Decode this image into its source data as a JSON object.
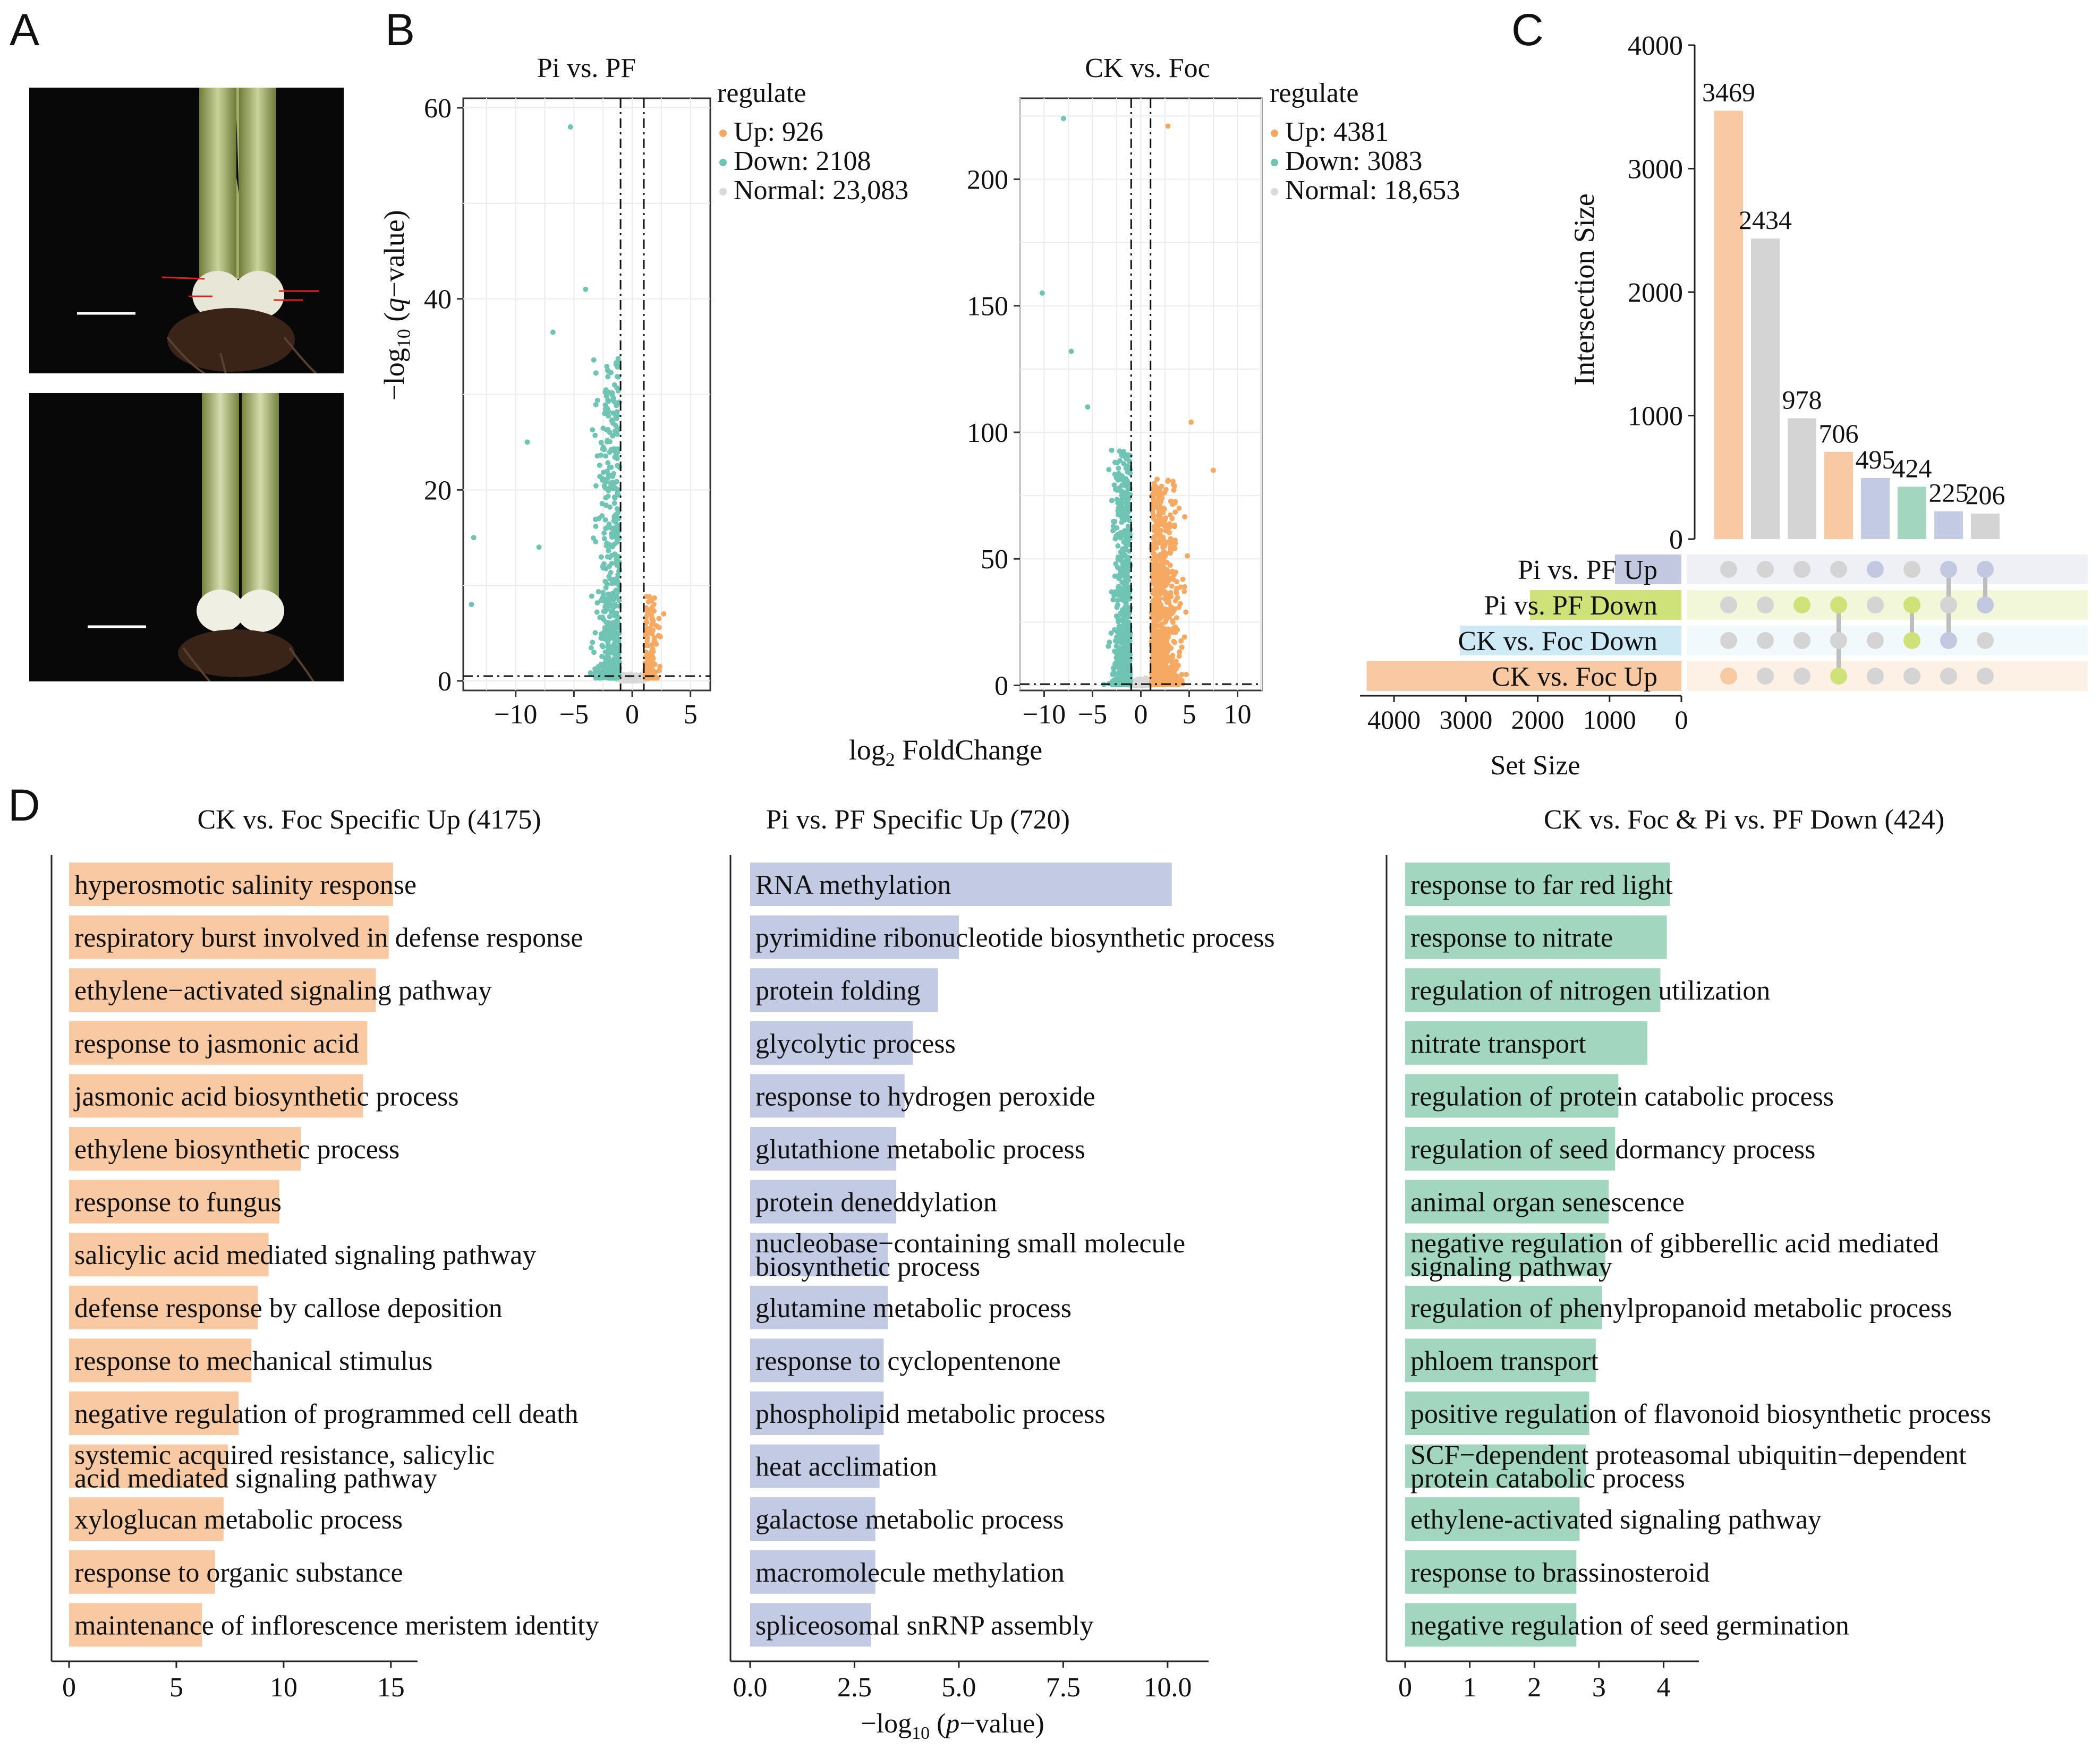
{
  "panels": {
    "A": "A",
    "B": "B",
    "C": "C",
    "D": "D"
  },
  "colors": {
    "up": "#f5a962",
    "down": "#6fc4b3",
    "normal": "#d9d9d9",
    "bar_orange": "#f8c9a3",
    "bar_blue": "#c3cae3",
    "bar_green": "#a3d6be",
    "red_text": "#e3342b",
    "upset_gray": "#d4d4d4",
    "upset_blue": "#c1c8e0",
    "upset_lime": "#cfe27a",
    "upset_sky": "#cfe9f5",
    "upset_green": "#a3d6be",
    "upset_peach": "#f8c9a3"
  },
  "photos": {
    "top_icon": "plant-stem-photo-inoculated",
    "bottom_icon": "plant-stem-photo-control"
  },
  "chart_data": [
    {
      "type": "scatter",
      "title": "Pi vs. PF",
      "xlabel": "log2 FoldChange",
      "ylabel": "−log10 (q−value)",
      "xlim": [
        -14.5,
        6.7
      ],
      "ylim": [
        -1,
        61
      ],
      "xticks": [
        -10,
        -5,
        0,
        5
      ],
      "yticks": [
        0,
        20,
        40,
        60
      ],
      "vlines": [
        -1,
        1
      ],
      "hline": 0.5,
      "legend_title": "regulate",
      "legend": [
        "Up: 926",
        "Down: 2108",
        "Normal: 23,083"
      ],
      "counts": {
        "up": 926,
        "down": 2108,
        "normal": 23083
      }
    },
    {
      "type": "scatter",
      "title": "CK vs. Foc",
      "xlim": [
        -12.5,
        12.5
      ],
      "ylim": [
        -2,
        232
      ],
      "xticks": [
        -10,
        -5,
        0,
        5,
        10
      ],
      "yticks": [
        0,
        50,
        100,
        150,
        200
      ],
      "vlines": [
        -1,
        1
      ],
      "hline": 0.5,
      "legend_title": "regulate",
      "legend": [
        "Up: 4381",
        "Down: 3083",
        "Normal: 18,653"
      ],
      "counts": {
        "up": 4381,
        "down": 3083,
        "normal": 18653
      }
    },
    {
      "type": "bar",
      "title": "UpSet",
      "ylabel": "Intersection Size",
      "ylim": [
        0,
        4000
      ],
      "yticks": [
        0,
        1000,
        2000,
        3000,
        4000
      ],
      "values": [
        3469,
        2434,
        978,
        706,
        495,
        424,
        225,
        206
      ],
      "bar_colors": [
        "orange",
        "gray",
        "gray",
        "orange",
        "blue",
        "green",
        "blue",
        "gray"
      ],
      "sets": [
        "Pi vs. PF Up",
        "Pi vs. PF Down",
        "CK vs. Foc Down",
        "CK vs. Foc Up"
      ],
      "set_sizes": [
        926,
        2108,
        3083,
        4381
      ],
      "set_colors": [
        "blue",
        "lime",
        "sky",
        "peach"
      ],
      "set_size_label": "Set Size",
      "set_size_ticks": [
        4000,
        3000,
        2000,
        1000,
        0
      ],
      "matrix": [
        [
          3
        ],
        [],
        [
          1
        ],
        [
          1,
          3
        ],
        [
          0
        ],
        [
          1,
          2
        ],
        [
          0,
          2
        ],
        [
          0,
          1
        ]
      ],
      "matrix_colors": [
        "peach",
        "gray",
        "lime",
        "lime",
        "blue",
        "lime",
        "blue",
        "blue"
      ]
    },
    {
      "type": "bar",
      "orientation": "horizontal",
      "title": "CK vs. Foc Specific Up (4175)",
      "xlim": [
        0,
        15.5
      ],
      "xticks": [
        0,
        5,
        10,
        15
      ],
      "color": "orange",
      "terms": [
        {
          "label": "hyperosmotic salinity response",
          "value": 15.1,
          "red": true
        },
        {
          "label": "respiratory burst involved in defense response",
          "value": 14.9,
          "red": true
        },
        {
          "label": "ethylene−activated signaling pathway",
          "value": 14.3,
          "red": false
        },
        {
          "label": "response to jasmonic acid",
          "value": 13.9,
          "red": true
        },
        {
          "label": "jasmonic acid biosynthetic process",
          "value": 13.7,
          "red": true
        },
        {
          "label": "ethylene biosynthetic process",
          "value": 10.8,
          "red": false
        },
        {
          "label": "response to fungus",
          "value": 9.8,
          "red": true
        },
        {
          "label": "salicylic acid mediated signaling pathway",
          "value": 9.3,
          "red": true
        },
        {
          "label": "defense response by callose deposition",
          "value": 8.8,
          "red": true
        },
        {
          "label": "response to mechanical stimulus",
          "value": 8.5,
          "red": true
        },
        {
          "label": "negative regulation of programmed cell death",
          "value": 7.9,
          "red": true
        },
        {
          "label": [
            "systemic acquired resistance, salicylic",
            "acid mediated signaling pathway"
          ],
          "value": 7.4,
          "red": true
        },
        {
          "label": "xyloglucan metabolic process",
          "value": 7.2,
          "red": false
        },
        {
          "label": "response to organic substance",
          "value": 6.8,
          "red": false
        },
        {
          "label": "maintenance of inflorescence meristem identity",
          "value": 6.2,
          "red": false
        }
      ]
    },
    {
      "type": "bar",
      "orientation": "horizontal",
      "title": "Pi vs. PF Specific Up (720)",
      "xlim": [
        0,
        10.6
      ],
      "xticks": [
        0,
        2.5,
        5,
        7.5,
        10
      ],
      "xtick_labels": [
        "0.0",
        "2.5",
        "5.0",
        "7.5",
        "10.0"
      ],
      "xlabel": "−log10 (p−value)",
      "color": "blue",
      "terms": [
        {
          "label": "RNA methylation",
          "value": 10.1,
          "red": false
        },
        {
          "label": "pyrimidine ribonucleotide biosynthetic process",
          "value": 5.0,
          "red": false
        },
        {
          "label": "protein folding",
          "value": 4.5,
          "red": false
        },
        {
          "label": "glycolytic process",
          "value": 3.9,
          "red": false
        },
        {
          "label": "response to hydrogen peroxide",
          "value": 3.7,
          "red": true
        },
        {
          "label": "glutathione metabolic process",
          "value": 3.5,
          "red": true
        },
        {
          "label": "protein deneddylation",
          "value": 3.5,
          "red": false
        },
        {
          "label": [
            "nucleobase−containing small molecule",
            "biosynthetic process"
          ],
          "value": 3.3,
          "red": false
        },
        {
          "label": "glutamine metabolic process",
          "value": 3.3,
          "red": false
        },
        {
          "label": "response to cyclopentenone",
          "value": 3.2,
          "red": false
        },
        {
          "label": "phospholipid metabolic process",
          "value": 3.2,
          "red": false
        },
        {
          "label": "heat acclimation",
          "value": 3.1,
          "red": false
        },
        {
          "label": "galactose metabolic process",
          "value": 3.0,
          "red": false
        },
        {
          "label": "macromolecule methylation",
          "value": 3.0,
          "red": false
        },
        {
          "label": "spliceosomal snRNP assembly",
          "value": 2.9,
          "red": false
        }
      ]
    },
    {
      "type": "bar",
      "orientation": "horizontal",
      "title": "CK vs. Foc & Pi vs. PF Down (424)",
      "xlim": [
        0,
        4.3
      ],
      "xticks": [
        0,
        1,
        2,
        3,
        4
      ],
      "color": "green",
      "terms": [
        {
          "label": "response to far red light",
          "value": 4.1,
          "red": false
        },
        {
          "label": "response to nitrate",
          "value": 4.05,
          "red": true
        },
        {
          "label": "regulation of nitrogen utilization",
          "value": 3.95,
          "red": true
        },
        {
          "label": "nitrate transport",
          "value": 3.75,
          "red": true
        },
        {
          "label": "regulation of protein catabolic process",
          "value": 3.3,
          "red": false
        },
        {
          "label": "regulation of seed dormancy process",
          "value": 3.25,
          "red": false
        },
        {
          "label": "animal organ senescence",
          "value": 3.15,
          "red": false
        },
        {
          "label": [
            "negative regulation of gibberellic acid mediated",
            "signaling pathway"
          ],
          "value": 3.1,
          "red": false
        },
        {
          "label": "regulation of phenylpropanoid metabolic process",
          "value": 3.05,
          "red": true
        },
        {
          "label": "phloem transport",
          "value": 2.95,
          "red": true
        },
        {
          "label": "positive regulation of flavonoid biosynthetic process",
          "value": 2.85,
          "red": true
        },
        {
          "label": [
            "SCF−dependent proteasomal ubiquitin−dependent",
            "protein catabolic process"
          ],
          "value": 2.8,
          "red": false
        },
        {
          "label": "ethylene-activated signaling pathway",
          "value": 2.7,
          "red": false
        },
        {
          "label": "response to brassinosteroid",
          "value": 2.65,
          "red": true
        },
        {
          "label": "negative regulation of seed germination",
          "value": 2.65,
          "red": false
        }
      ]
    }
  ]
}
